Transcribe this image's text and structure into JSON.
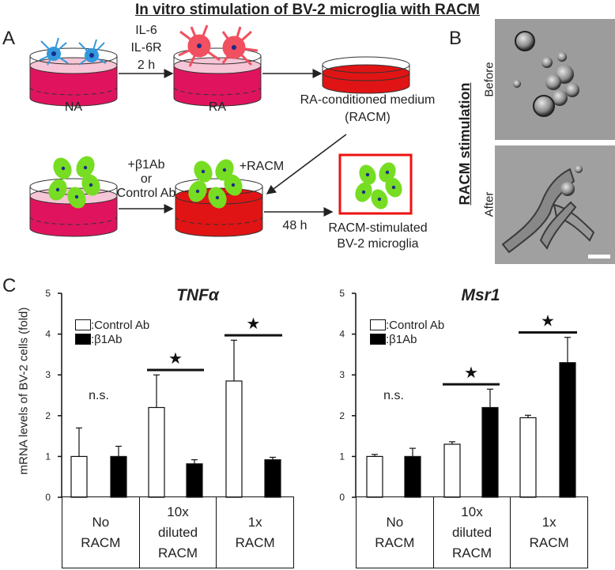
{
  "figure": {
    "title": "In vitro stimulation of BV-2 microglia with RACM",
    "panel_a": {
      "label": "A",
      "dish1": "NA",
      "stim_lines": [
        "IL-6",
        "IL-6R",
        "2 h"
      ],
      "dish2": "RA",
      "conditioned_lines": [
        "RA-conditioned medium",
        "(RACM)"
      ],
      "ab_lines": [
        "+β1Ab",
        "or",
        "Control Ab"
      ],
      "racm_add": "+RACM",
      "time": "48 h",
      "result_lines": [
        "RACM-stimulated",
        "BV-2 microglia"
      ]
    },
    "panel_b": {
      "label": "B",
      "side_title": "RACM stimulation",
      "before": "Before",
      "after": "After"
    },
    "panel_c": {
      "label": "C",
      "ylabel": "mRNA levels of BV-2 cells (fold)",
      "legend_control": ":Control Ab",
      "legend_b1": ":β1Ab",
      "ns": "n.s.",
      "group_labels": [
        [
          "No",
          "RACM"
        ],
        [
          "10x",
          "diluted",
          "RACM"
        ],
        [
          "1x",
          "RACM"
        ]
      ]
    }
  },
  "colors": {
    "media_pink": "#e0145e",
    "media_red": "#e01414",
    "astro_blue": "#3399dd",
    "astro_red": "#f05060",
    "cell_green": "#77dd22",
    "box_red": "#ee1111"
  },
  "chart_data": [
    {
      "type": "bar",
      "title": "TNFα",
      "categories": [
        "No RACM",
        "10x diluted RACM",
        "1x RACM"
      ],
      "ylim": [
        0,
        5
      ],
      "yticks": [
        0,
        1,
        2,
        3,
        4,
        5
      ],
      "series": [
        {
          "name": "Control Ab",
          "values": [
            1.0,
            2.2,
            2.85
          ],
          "errors": [
            0.7,
            0.8,
            1.0
          ]
        },
        {
          "name": "β1Ab",
          "values": [
            1.0,
            0.82,
            0.92
          ],
          "errors": [
            0.25,
            0.1,
            0.06
          ]
        }
      ],
      "significance": [
        "n.s.",
        "★",
        "★"
      ]
    },
    {
      "type": "bar",
      "title": "Msr1",
      "categories": [
        "No RACM",
        "10x diluted RACM",
        "1x RACM"
      ],
      "ylim": [
        0,
        5
      ],
      "yticks": [
        0,
        1,
        2,
        3,
        4,
        5
      ],
      "series": [
        {
          "name": "Control Ab",
          "values": [
            1.0,
            1.3,
            1.95
          ],
          "errors": [
            0.05,
            0.06,
            0.06
          ]
        },
        {
          "name": "β1Ab",
          "values": [
            1.0,
            2.2,
            3.3
          ],
          "errors": [
            0.2,
            0.45,
            0.62
          ]
        }
      ],
      "significance": [
        "n.s.",
        "★",
        "★"
      ]
    }
  ]
}
